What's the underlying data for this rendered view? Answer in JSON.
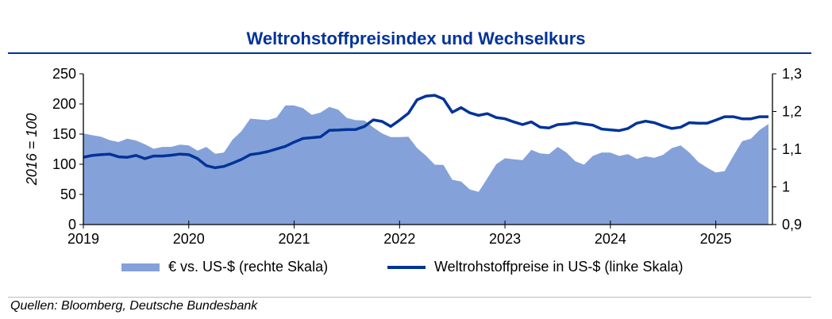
{
  "title": "Weltrohstoffpreisindex und Wechselkurs",
  "source": "Quellen: Bloomberg, Deutsche Bundesbank",
  "colors": {
    "title": "#003399",
    "area": "#84a1d9",
    "line": "#003399"
  },
  "chart_data": {
    "type": "line+area",
    "title": "Weltrohstoffpreisindex und Wechselkurs",
    "ylabel": "2016 = 100",
    "y_left": {
      "lim": [
        0,
        250
      ],
      "ticks": [
        "0",
        "50",
        "100",
        "150",
        "200",
        "250"
      ]
    },
    "y_right": {
      "lim": [
        0.9,
        1.3
      ],
      "ticks": [
        "0,9",
        "1",
        "1,1",
        "1,2",
        "1,3"
      ]
    },
    "x_ticks": [
      "2019",
      "2020",
      "2021",
      "2022",
      "2023",
      "2024",
      "2025"
    ],
    "x_range": [
      "2019-01",
      "2025-07"
    ],
    "frequency": "monthly",
    "grid": false,
    "legend_position": "bottom",
    "series": [
      {
        "name": "€ vs. US-$ (rechte Skala)",
        "type": "area",
        "axis": "right",
        "values": [
          1.142,
          1.137,
          1.133,
          1.124,
          1.119,
          1.128,
          1.123,
          1.113,
          1.101,
          1.106,
          1.106,
          1.112,
          1.11,
          1.096,
          1.106,
          1.088,
          1.091,
          1.126,
          1.148,
          1.181,
          1.179,
          1.177,
          1.184,
          1.216,
          1.216,
          1.209,
          1.191,
          1.197,
          1.212,
          1.205,
          1.183,
          1.177,
          1.176,
          1.158,
          1.142,
          1.132,
          1.132,
          1.133,
          1.103,
          1.083,
          1.059,
          1.058,
          1.019,
          1.014,
          0.993,
          0.987,
          1.023,
          1.06,
          1.076,
          1.073,
          1.071,
          1.098,
          1.089,
          1.087,
          1.106,
          1.091,
          1.068,
          1.059,
          1.082,
          1.091,
          1.091,
          1.082,
          1.087,
          1.074,
          1.081,
          1.077,
          1.085,
          1.103,
          1.11,
          1.091,
          1.066,
          1.051,
          1.038,
          1.042,
          1.082,
          1.121,
          1.128,
          1.151,
          1.167
        ]
      },
      {
        "name": "Weltrohstoffpreise in US-$ (linke Skala)",
        "type": "line",
        "axis": "left",
        "values": [
          111.6,
          114.6,
          115.9,
          116.8,
          112.4,
          111.6,
          114.6,
          109.4,
          113.7,
          113.7,
          115.0,
          116.8,
          115.9,
          109.4,
          97.7,
          94.2,
          96.4,
          102.0,
          108.0,
          115.9,
          118.0,
          121.0,
          125.4,
          129.8,
          136.7,
          142.8,
          144.1,
          145.4,
          156.2,
          156.7,
          157.6,
          157.6,
          162.8,
          173.6,
          171.0,
          162.8,
          173.2,
          184.5,
          207.0,
          213.0,
          214.4,
          208.3,
          186.2,
          194.0,
          185.3,
          181.0,
          184.0,
          177.5,
          175.4,
          170.2,
          165.8,
          170.2,
          161.5,
          160.2,
          165.8,
          166.7,
          168.9,
          166.7,
          164.9,
          158.4,
          157.1,
          155.8,
          159.3,
          168.0,
          171.5,
          168.9,
          163.6,
          159.3,
          161.5,
          168.9,
          168.0,
          168.0,
          173.2,
          178.8,
          178.8,
          175.4,
          175.4,
          178.8,
          178.8
        ]
      }
    ]
  }
}
